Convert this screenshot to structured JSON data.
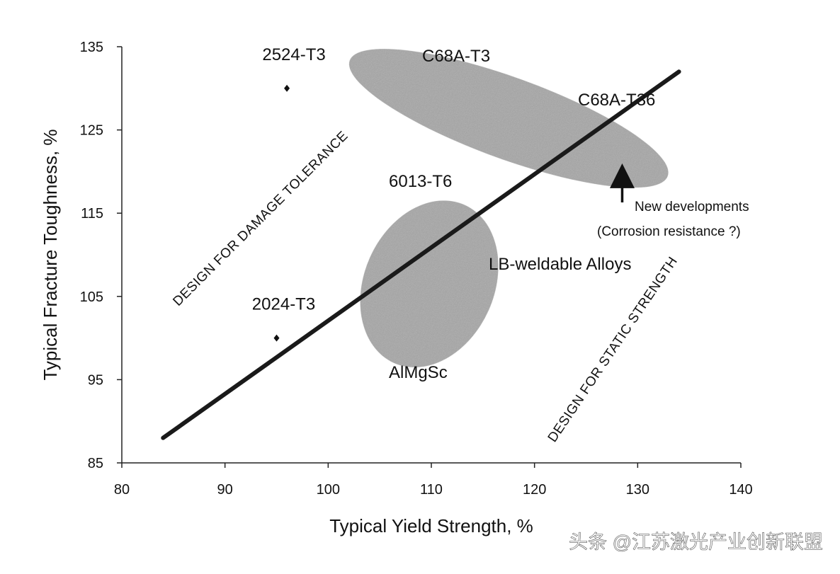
{
  "chart_data": {
    "type": "scatter",
    "xlabel": "Typical Yield Strength, %",
    "ylabel": "Typical Fracture Toughness, %",
    "xlim": [
      80,
      140
    ],
    "ylim": [
      85,
      135
    ],
    "x_ticks": [
      80,
      90,
      100,
      110,
      120,
      130,
      140
    ],
    "y_ticks": [
      85,
      95,
      105,
      115,
      125,
      135
    ],
    "grid": false,
    "points": [
      {
        "label": "2524-T3",
        "x": 96,
        "y": 130
      },
      {
        "label": "2024-T3",
        "x": 95,
        "y": 100
      }
    ],
    "trend_line": {
      "x": [
        84,
        134
      ],
      "y": [
        88,
        132
      ]
    },
    "regions": [
      {
        "labels": [
          "C68A-T3",
          "C68A-T36"
        ],
        "center": [
          117.5,
          126.4
        ],
        "rx_units": 16.4,
        "ry_units": 4.9,
        "rotation_deg": 20,
        "color": "#9a9a9a"
      },
      {
        "labels": [
          "6013-T6",
          "LB-weldable Alloys",
          "AlMgSc"
        ],
        "center": [
          109.8,
          106.5
        ],
        "rx_units": 6.3,
        "ry_units": 10.4,
        "rotation_deg": 24,
        "color": "#9a9a9a"
      }
    ],
    "annotations": {
      "new_dev_line1": "New developments",
      "new_dev_line2": "(Corrosion resistance ?)",
      "design_damage": "DESIGN FOR DAMAGE TOLERANCE",
      "design_static": "DESIGN FOR STATIC STRENGTH",
      "c68a_t3": "C68A-T3",
      "c68a_t36": "C68A-T36",
      "t6013": "6013-T6",
      "lb_weldable": "LB-weldable Alloys",
      "almgsc": "AlMgSc"
    },
    "arrow_target": {
      "x": 128.5,
      "y": 120
    }
  },
  "watermark": "头条 @江苏激光产业创新联盟"
}
